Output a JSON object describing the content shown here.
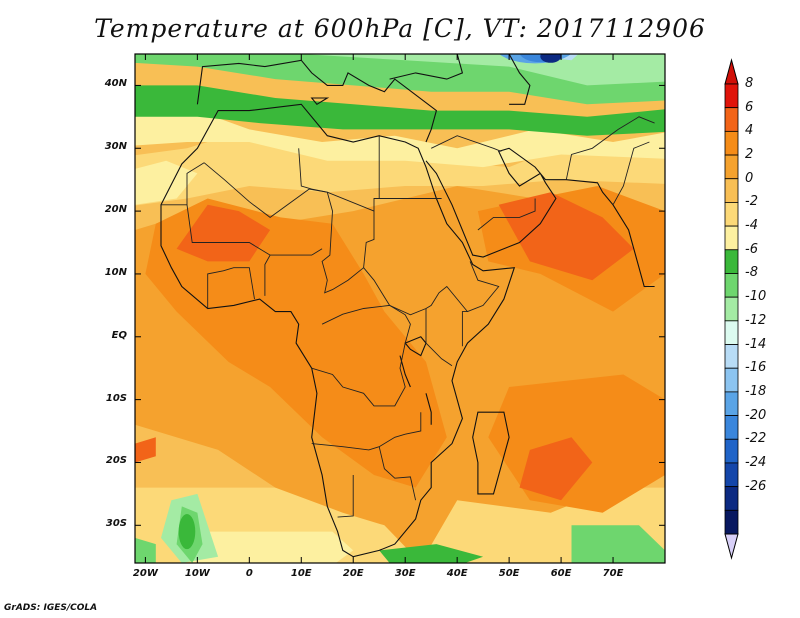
{
  "title": "Temperature at 600hPa [C], VT: 2017112906",
  "footer": "GrADS: IGES/COLA",
  "map": {
    "type": "filled-contour-map",
    "variable": "Temperature",
    "level": "600hPa",
    "units": "C",
    "valid_time": "2017112906",
    "lon_range": [
      -22,
      80
    ],
    "lat_range": [
      -36,
      45
    ],
    "lat_ticks": [
      {
        "value": 40,
        "label": "40N"
      },
      {
        "value": 30,
        "label": "30N"
      },
      {
        "value": 20,
        "label": "20N"
      },
      {
        "value": 10,
        "label": "10N"
      },
      {
        "value": 0,
        "label": "EQ"
      },
      {
        "value": -10,
        "label": "10S"
      },
      {
        "value": -20,
        "label": "20S"
      },
      {
        "value": -30,
        "label": "30S"
      }
    ],
    "lon_ticks": [
      {
        "value": -20,
        "label": "20W"
      },
      {
        "value": -10,
        "label": "10W"
      },
      {
        "value": 0,
        "label": "0"
      },
      {
        "value": 10,
        "label": "10E"
      },
      {
        "value": 20,
        "label": "20E"
      },
      {
        "value": 30,
        "label": "30E"
      },
      {
        "value": 40,
        "label": "40E"
      },
      {
        "value": 50,
        "label": "50E"
      },
      {
        "value": 60,
        "label": "60E"
      },
      {
        "value": 70,
        "label": "70E"
      }
    ]
  },
  "colorbar": {
    "labels": [
      "8",
      "6",
      "4",
      "2",
      "0",
      "-2",
      "-4",
      "-6",
      "-8",
      "-10",
      "-12",
      "-14",
      "-16",
      "-18",
      "-20",
      "-22",
      "-24",
      "-26"
    ],
    "colors": [
      "#e0140a",
      "#f26418",
      "#f58c18",
      "#f5a22e",
      "#f8bf55",
      "#fcd978",
      "#fdf0a0",
      "#3ab83a",
      "#6ed66e",
      "#a4eba4",
      "#dcfbf0",
      "#b8dcf6",
      "#8cc4f0",
      "#5aa4e6",
      "#3a86dc",
      "#2064c8",
      "#1446aa",
      "#0c2a82",
      "#081860"
    ],
    "top_triangle_color": "#d01008",
    "bottom_triangle_color": "#d8d0f8"
  }
}
